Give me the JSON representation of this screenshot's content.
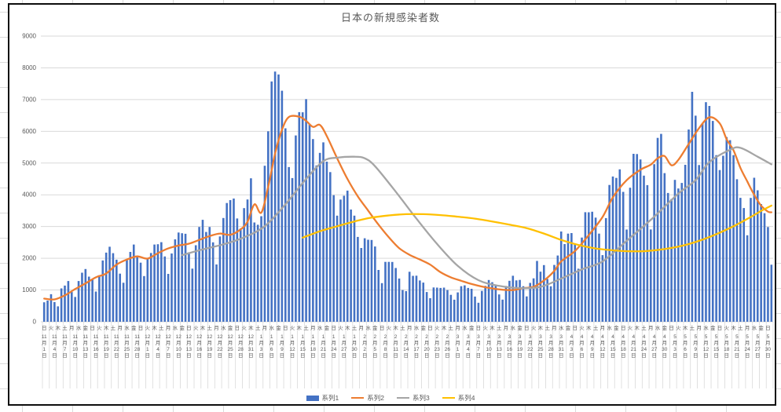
{
  "chart": {
    "title": "日本の新規感染者数",
    "legend": [
      {
        "label": "系列1",
        "color": "#4472C4",
        "kind": "bar"
      },
      {
        "label": "系列2",
        "color": "#ED7D31",
        "kind": "line"
      },
      {
        "label": "系列3",
        "color": "#A5A5A5",
        "kind": "line"
      },
      {
        "label": "系列4",
        "color": "#FFC000",
        "kind": "line"
      }
    ],
    "y_axis": {
      "ticks": [
        0,
        1000,
        2000,
        3000,
        4000,
        5000,
        6000,
        7000,
        8000,
        9000
      ]
    },
    "x_axis": {
      "weekday_labels": "日火木土月水金日火木土月水金日火木土月水金日火木土月水金日火木土月水金日火木土月水金日火木土月水金日火木土月水金日火木土月水金日火木土月水金日火木土月水金日火木土月水金日火木土月水金日火木土月水金日火木土月水金日",
      "date_labels": [
        "11月1日",
        "11月4日",
        "11月7日",
        "11月10日",
        "11月13日",
        "11月16日",
        "11月19日",
        "11月22日",
        "11月25日",
        "11月28日",
        "12月1日",
        "12月4日",
        "12月7日",
        "12月10日",
        "12月13日",
        "12月16日",
        "12月19日",
        "12月22日",
        "12月25日",
        "12月28日",
        "12月31日",
        "1月3日",
        "1月6日",
        "1月9日",
        "1月12日",
        "1月15日",
        "1月18日",
        "1月21日",
        "1月24日",
        "1月27日",
        "1月30日",
        "2月2日",
        "2月5日",
        "2月8日",
        "2月11日",
        "2月14日",
        "2月17日",
        "2月20日",
        "2月23日",
        "2月26日",
        "3月1日",
        "3月4日",
        "3月7日",
        "3月10日",
        "3月13日",
        "3月16日",
        "3月19日",
        "3月22日",
        "3月25日",
        "3月28日",
        "3月31日",
        "4月3日",
        "4月6日",
        "4月9日",
        "4月12日",
        "4月15日",
        "4月18日",
        "4月21日",
        "4月24日",
        "4月27日",
        "4月30日",
        "5月3日",
        "5月6日",
        "5月9日",
        "5月12日",
        "5月15日",
        "5月18日",
        "5月21日",
        "5月24日",
        "5月27日",
        "5月30日"
      ]
    },
    "colors": {
      "gridline": "#D9D9D9",
      "axis_text": "#595959",
      "frame": "#0d0d0d"
    }
  },
  "chart_data": {
    "type": "combo",
    "title": "日本の新規感染者数",
    "ylim": [
      0,
      9000
    ],
    "grid": true,
    "legend_position": "bottom",
    "categories_note": "daily values, 11月1日(日)〜5月31日, x labels shown every 2nd day (weekday) / every 3rd day (date)",
    "series": [
      {
        "name": "系列1",
        "type": "bar",
        "color": "#4472C4",
        "values": [
          614,
          667,
          868,
          620,
          485,
          1050,
          1141,
          1284,
          936,
          782,
          1284,
          1546,
          1661,
          1422,
          1350,
          951,
          1463,
          1931,
          2179,
          2363,
          2160,
          1955,
          1515,
          1230,
          1946,
          2201,
          2434,
          2063,
          1862,
          1440,
          1985,
          2166,
          2434,
          2442,
          2508,
          2056,
          1509,
          2152,
          2597,
          2812,
          2788,
          2772,
          2185,
          1675,
          2410,
          2987,
          3211,
          2829,
          2988,
          2501,
          1806,
          2688,
          3269,
          3742,
          3832,
          3881,
          3255,
          2941,
          3580,
          3852,
          4520,
          3127,
          3057,
          3325,
          4915,
          6001,
          7570,
          7882,
          7790,
          7278,
          6096,
          4873,
          4527,
          5870,
          6605,
          6600,
          7014,
          6217,
          5756,
          4925,
          5320,
          5653,
          5043,
          4715,
          3989,
          3344,
          3850,
          3971,
          4131,
          3536,
          3343,
          2673,
          2325,
          2631,
          2585,
          2576,
          2372,
          1633,
          1216,
          1886,
          1887,
          1885,
          1693,
          1362,
          999,
          965,
          1576,
          1447,
          1451,
          1301,
          1233,
          938,
          741,
          1081,
          1076,
          1066,
          1075,
          999,
          847,
          695,
          924,
          1121,
          1148,
          1065,
          1038,
          793,
          599,
          972,
          1131,
          1316,
          1246,
          1162,
          860,
          698,
          1127,
          1290,
          1448,
          1303,
          1319,
          1121,
          798,
          1224,
          1367,
          1917,
          1577,
          1785,
          1347,
          1118,
          1791,
          2087,
          2843,
          2447,
          2777,
          2795,
          2470,
          1671,
          2654,
          3451,
          3448,
          3467,
          3282,
          2777,
          2098,
          3267,
          4309,
          4577,
          4532,
          4802,
          4093,
          2905,
          4224,
          5291,
          5283,
          5113,
          4605,
          4304,
          2908,
          4965,
          5792,
          5918,
          4684,
          4058,
          3867,
          4471,
          4199,
          4373,
          4944,
          6058,
          7244,
          6493,
          4938,
          6243,
          6917,
          6800,
          6328,
          5249,
          4780,
          5230,
          5819,
          5721,
          5250,
          4489,
          3905,
          3582,
          2725,
          3901,
          4536,
          4142,
          3710,
          3420,
          2984,
          1797
        ]
      },
      {
        "name": "系列2",
        "type": "line",
        "color": "#ED7D31",
        "points": [
          [
            0,
            730
          ],
          [
            3,
            705
          ],
          [
            6,
            830
          ],
          [
            9,
            1030
          ],
          [
            12,
            1210
          ],
          [
            15,
            1400
          ],
          [
            18,
            1520
          ],
          [
            21,
            1800
          ],
          [
            24,
            1960
          ],
          [
            27,
            2060
          ],
          [
            30,
            1990
          ],
          [
            33,
            2160
          ],
          [
            36,
            2310
          ],
          [
            39,
            2400
          ],
          [
            42,
            2460
          ],
          [
            45,
            2580
          ],
          [
            48,
            2700
          ],
          [
            51,
            2780
          ],
          [
            54,
            2740
          ],
          [
            57,
            2910
          ],
          [
            59,
            3150
          ],
          [
            61,
            3700
          ],
          [
            63,
            3440
          ],
          [
            65,
            4250
          ],
          [
            67,
            5300
          ],
          [
            69,
            6050
          ],
          [
            71,
            6450
          ],
          [
            74,
            6460
          ],
          [
            76,
            6330
          ],
          [
            78,
            6140
          ],
          [
            80,
            6200
          ],
          [
            82,
            5850
          ],
          [
            85,
            5150
          ],
          [
            88,
            4500
          ],
          [
            91,
            3950
          ],
          [
            94,
            3500
          ],
          [
            97,
            3060
          ],
          [
            100,
            2660
          ],
          [
            103,
            2320
          ],
          [
            106,
            2110
          ],
          [
            109,
            1960
          ],
          [
            112,
            1800
          ],
          [
            115,
            1560
          ],
          [
            118,
            1400
          ],
          [
            121,
            1290
          ],
          [
            124,
            1190
          ],
          [
            127,
            1110
          ],
          [
            130,
            1050
          ],
          [
            133,
            1010
          ],
          [
            136,
            1000
          ],
          [
            139,
            1060
          ],
          [
            142,
            1100
          ],
          [
            145,
            1300
          ],
          [
            148,
            1600
          ],
          [
            150,
            1900
          ],
          [
            154,
            2230
          ],
          [
            158,
            2730
          ],
          [
            162,
            3300
          ],
          [
            165,
            3920
          ],
          [
            169,
            4460
          ],
          [
            173,
            4790
          ],
          [
            176,
            4950
          ],
          [
            178,
            5150
          ],
          [
            180,
            5220
          ],
          [
            182,
            4930
          ],
          [
            184,
            5100
          ],
          [
            187,
            5600
          ],
          [
            190,
            6100
          ],
          [
            193,
            6440
          ],
          [
            196,
            6250
          ],
          [
            198,
            5750
          ],
          [
            200,
            5400
          ],
          [
            202,
            4850
          ],
          [
            204,
            4420
          ],
          [
            206,
            4000
          ],
          [
            208,
            3660
          ],
          [
            210,
            3470
          ],
          [
            211,
            3450
          ]
        ]
      },
      {
        "name": "系列3",
        "type": "line",
        "color": "#A5A5A5",
        "points": [
          [
            40,
            2100
          ],
          [
            46,
            2280
          ],
          [
            52,
            2440
          ],
          [
            58,
            2660
          ],
          [
            64,
            3010
          ],
          [
            70,
            3700
          ],
          [
            76,
            4500
          ],
          [
            81,
            5060
          ],
          [
            85,
            5170
          ],
          [
            90,
            5200
          ],
          [
            93,
            5150
          ],
          [
            96,
            4900
          ],
          [
            102,
            4100
          ],
          [
            108,
            3250
          ],
          [
            114,
            2450
          ],
          [
            120,
            1760
          ],
          [
            126,
            1310
          ],
          [
            132,
            1130
          ],
          [
            138,
            1060
          ],
          [
            144,
            1100
          ],
          [
            150,
            1360
          ],
          [
            156,
            1650
          ],
          [
            162,
            1900
          ],
          [
            169,
            2550
          ],
          [
            177,
            3310
          ],
          [
            184,
            4040
          ],
          [
            189,
            4460
          ],
          [
            193,
            5030
          ],
          [
            199,
            5420
          ],
          [
            202,
            5480
          ],
          [
            207,
            5200
          ],
          [
            211,
            4960
          ]
        ]
      },
      {
        "name": "系列4",
        "type": "line",
        "color": "#FFC000",
        "points": [
          [
            75,
            2650
          ],
          [
            80,
            2850
          ],
          [
            85,
            3010
          ],
          [
            90,
            3160
          ],
          [
            95,
            3280
          ],
          [
            100,
            3350
          ],
          [
            105,
            3390
          ],
          [
            110,
            3390
          ],
          [
            115,
            3360
          ],
          [
            120,
            3310
          ],
          [
            125,
            3250
          ],
          [
            130,
            3160
          ],
          [
            135,
            3060
          ],
          [
            140,
            2950
          ],
          [
            145,
            2780
          ],
          [
            150,
            2580
          ],
          [
            155,
            2420
          ],
          [
            160,
            2310
          ],
          [
            165,
            2250
          ],
          [
            170,
            2220
          ],
          [
            175,
            2230
          ],
          [
            180,
            2290
          ],
          [
            185,
            2390
          ],
          [
            190,
            2550
          ],
          [
            195,
            2760
          ],
          [
            200,
            3010
          ],
          [
            205,
            3300
          ],
          [
            208,
            3490
          ],
          [
            211,
            3660
          ]
        ]
      }
    ]
  }
}
